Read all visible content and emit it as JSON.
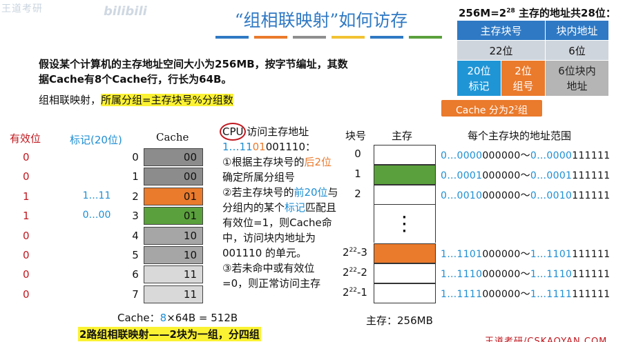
{
  "watermark": {
    "text": "王道考研",
    "site": "bilibili"
  },
  "title": "“组相联映射”如何访存",
  "stripe_colors": [
    "#2f79c4",
    "#ea7a2c",
    "#8e8e8e",
    "#f1c232",
    "#2f79c4",
    "#5aa03c"
  ],
  "intro": "假设某个计算机的主存地址空间大小为256MB，按字节编址，其数据Cache有8个Cache行，行长为64B。",
  "mapping": {
    "prefix": "组相联映射，",
    "highlight": "所属分组=主存块号%分组数"
  },
  "address": {
    "title_pre": "256M=2",
    "title_exp": "28",
    "title_post": " 主存的地址共28位：",
    "h_block": "主存块号",
    "h_offset": "块内地址",
    "bits_block": "22位",
    "bits_offset": "6位",
    "tag": "20位\n标记",
    "group": "2位\n组号",
    "offset_desc": "6位块内\n地址",
    "note_pre": "Cache 分为2",
    "note_exp": "2",
    "note_post": "组"
  },
  "cache_table": {
    "h_valid": "有效位",
    "h_tag": "标记(20位)",
    "h_cache": "Cache",
    "rows": [
      {
        "idx": "0",
        "valid": "0",
        "tag": "",
        "group": "00",
        "color": "#8c8c8c"
      },
      {
        "idx": "1",
        "valid": "0",
        "tag": "",
        "group": "00",
        "color": "#8c8c8c"
      },
      {
        "idx": "2",
        "valid": "1",
        "tag": "1…11",
        "group": "01",
        "color": "#ea7a2c"
      },
      {
        "idx": "3",
        "valid": "1",
        "tag": "0…00",
        "group": "01",
        "color": "#5aa03c"
      },
      {
        "idx": "4",
        "valid": "0",
        "tag": "",
        "group": "10",
        "color": "#a6a6a6"
      },
      {
        "idx": "5",
        "valid": "0",
        "tag": "",
        "group": "10",
        "color": "#a6a6a6"
      },
      {
        "idx": "6",
        "valid": "0",
        "tag": "",
        "group": "11",
        "color": "#d9d9d9"
      },
      {
        "idx": "7",
        "valid": "0",
        "tag": "",
        "group": "11",
        "color": "#d9d9d9"
      }
    ],
    "summary_pre": "Cache：",
    "summary_num": "8",
    "summary_post": "×64B = 512B"
  },
  "cpu": {
    "line1_cpu": "CPU",
    "line1_rest": " 访问主存地址",
    "addr_blue": "1…11",
    "addr_orange": "01",
    "addr_rest": "001110：",
    "step1_a": "①根据主存块号的",
    "step1_b": "后2位",
    "step1_c": "确定所属分组号",
    "step2_a": "②若主存块号的",
    "step2_b": "前20位",
    "step2_c": "与分组内的某个",
    "step2_d": "标记",
    "step2_e": "匹配且有效位=1，则Cache命中，访问块内地址为 001110 的单元。",
    "step3": "③若未命中或有效位=0，则正常访问主存"
  },
  "memory": {
    "h_block": "块号",
    "h_mem": "主存",
    "h_range": "每个主存块的地址范围",
    "blocks": [
      {
        "label": "0",
        "sup": "",
        "suffix": "",
        "color": "#ffffff",
        "r1a": "0…0000",
        "r1b": "000000",
        "r2a": "0…0000",
        "r2b": "111111"
      },
      {
        "label": "1",
        "sup": "",
        "suffix": "",
        "color": "#5aa03c",
        "r1a": "0…0001",
        "r1b": "000000",
        "r2a": "0…0001",
        "r2b": "111111"
      },
      {
        "label": "2",
        "sup": "",
        "suffix": "",
        "color": "#ffffff",
        "r1a": "0…0010",
        "r1b": "000000",
        "r2a": "0…0010",
        "r2b": "111111"
      },
      {
        "label": "2",
        "sup": "22",
        "suffix": "-3",
        "color": "#ea7a2c",
        "r1a": "1…1101",
        "r1b": "000000",
        "r2a": "1…1101",
        "r2b": "111111"
      },
      {
        "label": "2",
        "sup": "22",
        "suffix": "-2",
        "color": "#ffffff",
        "r1a": "1…1110",
        "r1b": "000000",
        "r2a": "1…1110",
        "r2b": "111111"
      },
      {
        "label": "2",
        "sup": "22",
        "suffix": "-1",
        "color": "#ffffff",
        "r1a": "1…1111",
        "r1b": "000000",
        "r2a": "1…1111",
        "r2b": "111111"
      }
    ],
    "tilde": "～",
    "summary": "主存：256MB"
  },
  "footer": {
    "highlight": "2路组相联映射——2块为一组，分四组",
    "brand": "王道考研/CSKAOYAN.COM"
  }
}
